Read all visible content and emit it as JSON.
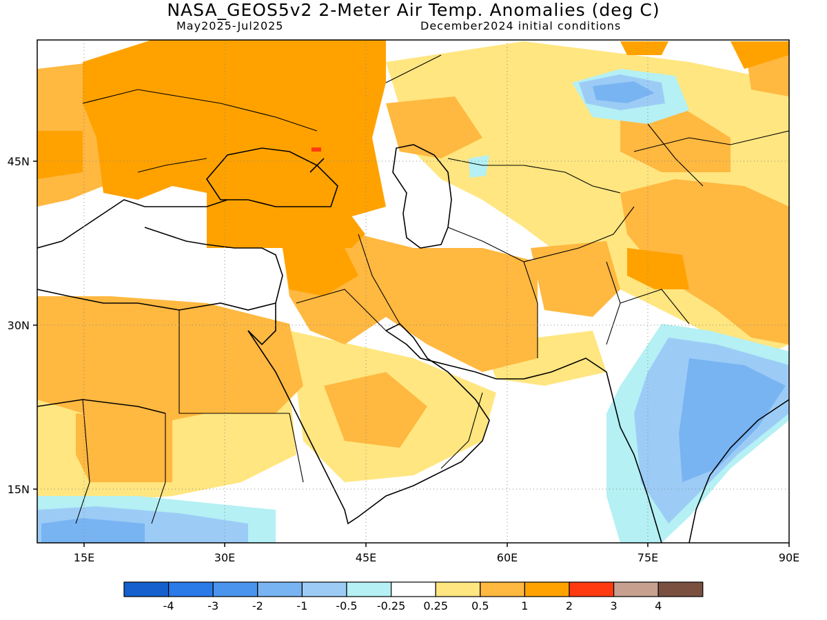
{
  "title": "NASA_GEOS5v2 2-Meter Air Temp. Anomalies (deg C)",
  "subtitle_left": "May2025-Jul2025",
  "subtitle_right": "December2024 initial conditions",
  "map": {
    "projection": "cylindrical equidistant",
    "lon_range": [
      10,
      90
    ],
    "lat_range": [
      10,
      57
    ],
    "gridlines": "dotted",
    "lon_ticks": [
      "15E",
      "30E",
      "45E",
      "60E",
      "75E",
      "90E"
    ],
    "lat_ticks": [
      "45N",
      "30N",
      "15N"
    ]
  },
  "colorbar": {
    "labels": [
      "-4",
      "-3",
      "-2",
      "-1",
      "-0.5",
      "-0.25",
      "0.25",
      "0.5",
      "1",
      "2",
      "3",
      "4"
    ],
    "colors": [
      "#1560cc",
      "#2a7ae8",
      "#4a94ee",
      "#79b4f2",
      "#9cccf6",
      "#b4f0f4",
      "#ffffff",
      "#ffe680",
      "#ffb840",
      "#ffa200",
      "#ff3a10",
      "#c8a090",
      "#7a5040"
    ]
  }
}
